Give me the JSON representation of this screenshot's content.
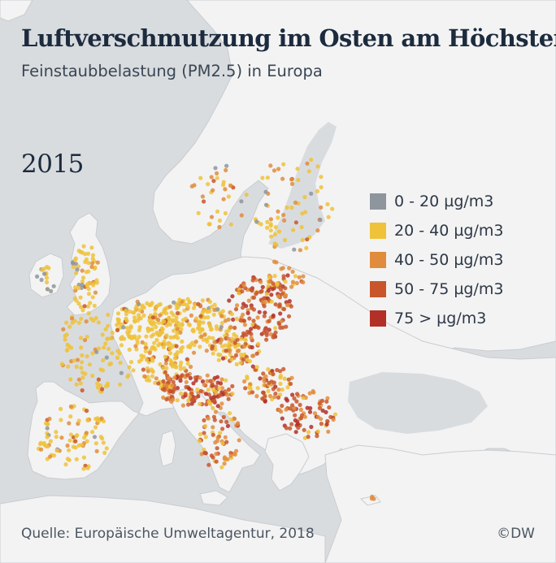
{
  "header": {
    "title": "Luftverschmutzung im Osten am Höchsten",
    "subtitle": "Feinstaubbelastung (PM2.5) in Europa"
  },
  "year": "2015",
  "legend": {
    "items": [
      {
        "label": "0 - 20 µg/m3",
        "color": "#8e959d"
      },
      {
        "label": "20 - 40 µg/m3",
        "color": "#efc23a"
      },
      {
        "label": "40 - 50 µg/m3",
        "color": "#e08c3c"
      },
      {
        "label": "50 - 75 µg/m3",
        "color": "#c8562a"
      },
      {
        "label": "75 > µg/m3",
        "color": "#b23027"
      }
    ]
  },
  "footer": {
    "source": "Quelle: Europäische Umweltagentur, 2018",
    "credit": "©DW"
  },
  "colors": {
    "sea": "#d9dcdf",
    "land": "#f3f3f3",
    "border": "#cfd2d5"
  }
}
